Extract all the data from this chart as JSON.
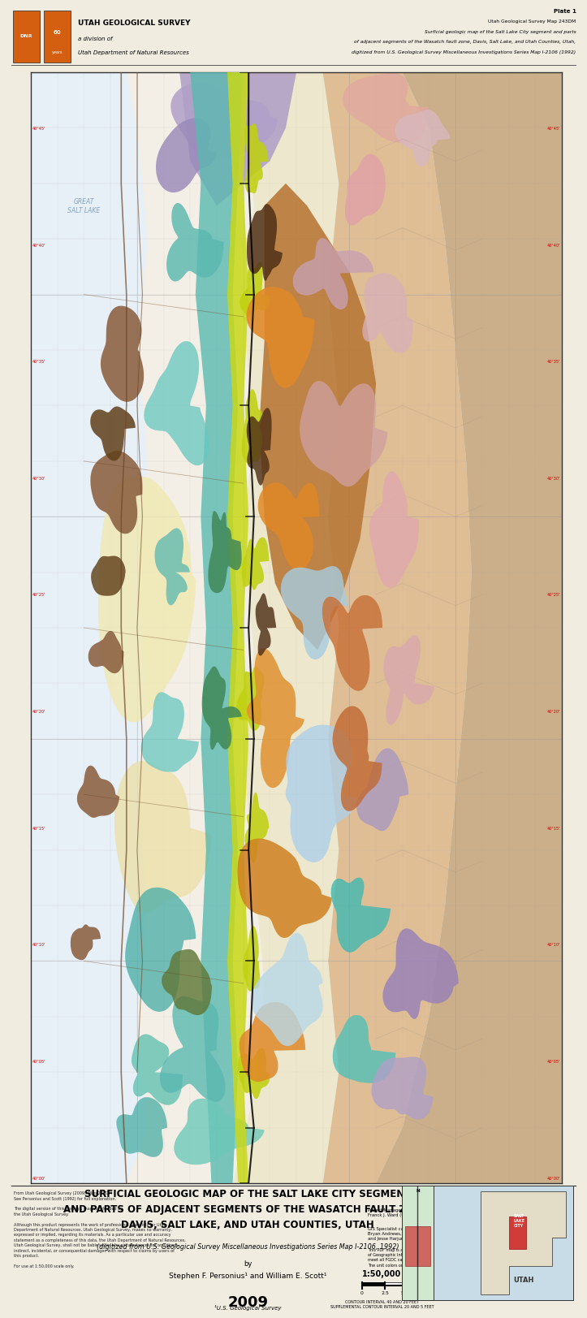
{
  "title_main": "SURFICIAL GEOLOGIC MAP OF THE SALT LAKE CITY SEGMENT\nAND PARTS OF ADJACENT SEGMENTS OF THE WASATCH FAULT ZONE,\nDAVIS, SALT LAKE, AND UTAH COUNTIES, UTAH",
  "title_sub": "(digitized from U.S. Geological Survey Miscellaneous Investigations Series Map I-2106, 1992)",
  "title_by": "by",
  "title_authors": "Stephen F. Personius¹ and William E. Scott¹",
  "title_year": "2009",
  "title_footnote": "¹U.S. Geological Survey",
  "header_agency1": "UTAH GEOLOGICAL SURVEY",
  "header_agency2": "a division of",
  "header_agency3": "Utah Department of Natural Resources",
  "plate_line1": "Plate 1",
  "plate_line2": "Utah Geological Survey Map 243DM",
  "plate_line3": "Surficial geologic map of the Salt Lake City segment and parts",
  "plate_line4": "of adjacent segments of the Wasatch fault zone, Davis, Salt Lake, and Utah Counties, Utah,",
  "plate_line5": "digitized from U.S. Geological Survey Miscellaneous Investigations Series Map I-2106 (1992)",
  "scale_text": "1:50,000",
  "fig_width": 7.03,
  "fig_height": 16.0,
  "dpi": 100,
  "map_bg": "#ddeef5",
  "page_bg": "#f0ece0",
  "border_color": "#444444"
}
